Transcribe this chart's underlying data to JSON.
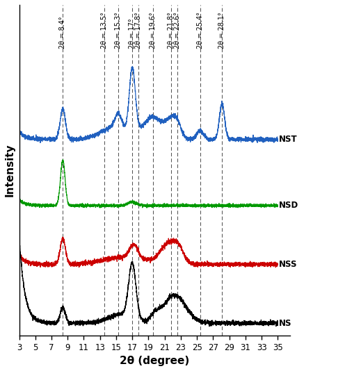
{
  "title": "",
  "xlabel": "2θ (degree)",
  "ylabel": "Intensity",
  "xlim": [
    3,
    35
  ],
  "x_ticks": [
    3,
    5,
    7,
    9,
    11,
    13,
    15,
    17,
    19,
    21,
    23,
    25,
    27,
    29,
    31,
    33,
    35
  ],
  "dashed_lines": [
    8.4,
    13.5,
    15.3,
    17.0,
    17.8,
    19.6,
    21.8,
    22.6,
    25.4,
    28.1
  ],
  "line_labels": [
    "2θ = 8.4°",
    "2θ = 13.5°",
    "2θ = 15.3°",
    "2θ = 17°",
    "2θ = 17.8°",
    "2θ = 19.6°",
    "2θ = 21.8°",
    "2θ = 22.6°",
    "2θ = 25.4°",
    "2θ = 28.1°"
  ],
  "sample_labels": [
    "NST",
    "NSD",
    "NSS",
    "NS"
  ],
  "sample_colors": [
    "#2060bf",
    "#009900",
    "#cc0000",
    "#000000"
  ],
  "offsets": [
    2.5,
    1.6,
    0.8,
    0.0
  ],
  "noise_seed": 42,
  "background_color": "#ffffff"
}
